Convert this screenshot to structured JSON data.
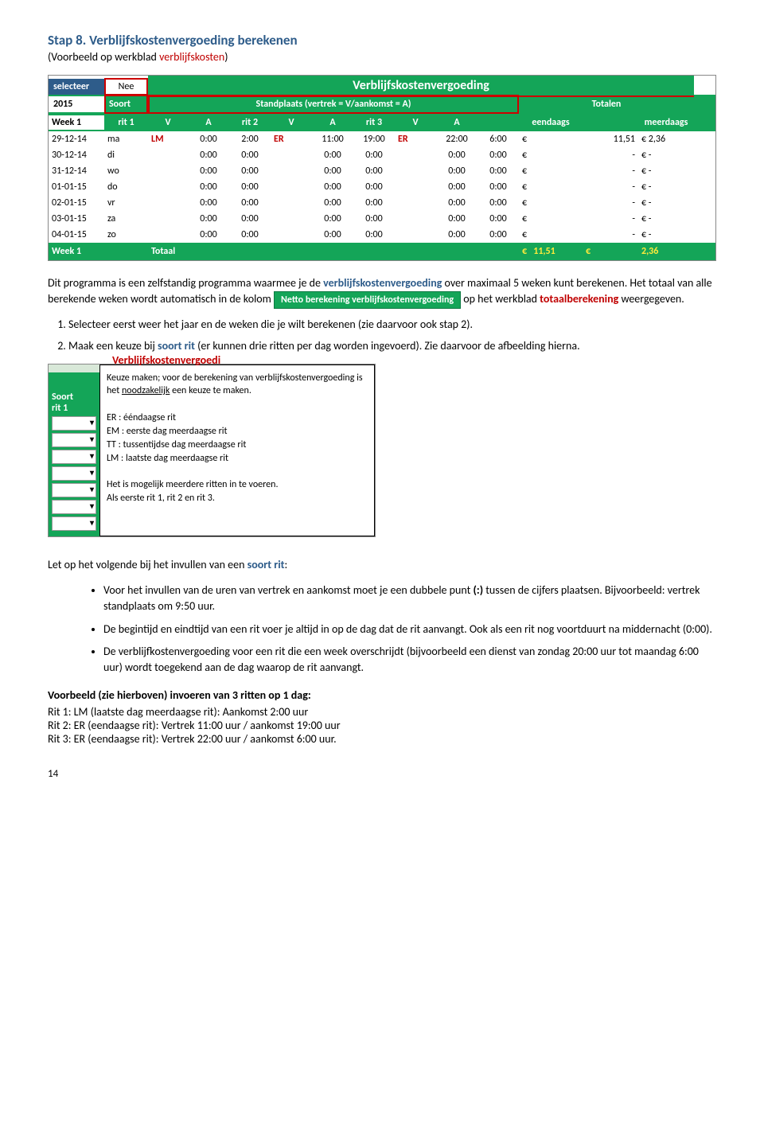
{
  "step": {
    "title": "Stap 8. Verblijfskostenvergoeding berekenen",
    "sub_pre": "(Voorbeeld op werkblad ",
    "sub_red": "verblijfskosten",
    "sub_post": ")"
  },
  "sheet1": {
    "selecteer": "selecteer",
    "nee": "Nee",
    "title": "Verblijfskostenvergoeding",
    "year": "2015",
    "week": "Week 1",
    "soort": "Soort",
    "rit1": "rit 1",
    "stand": "Standplaats (vertrek = V/aankomst = A)",
    "totalen": "Totalen",
    "h": {
      "v": "V",
      "a": "A",
      "rit2": "rit 2",
      "rit3": "rit 3",
      "eend": "eendaags",
      "meer": "meerdaags"
    },
    "rows": [
      {
        "d": "29-12-14",
        "dag": "ma",
        "r1": "LM",
        "v1": "0:00",
        "a1": "2:00",
        "r2": "ER",
        "v2": "11:00",
        "a2": "19:00",
        "r3": "ER",
        "v3": "22:00",
        "a3": "6:00",
        "e": "€",
        "ev": "11,51",
        "m": "€",
        "mv": "2,36"
      },
      {
        "d": "30-12-14",
        "dag": "di",
        "r1": "",
        "v1": "0:00",
        "a1": "0:00",
        "r2": "",
        "v2": "0:00",
        "a2": "0:00",
        "r3": "",
        "v3": "0:00",
        "a3": "0:00",
        "e": "€",
        "ev": "-",
        "m": "€",
        "mv": "-"
      },
      {
        "d": "31-12-14",
        "dag": "wo",
        "r1": "",
        "v1": "0:00",
        "a1": "0:00",
        "r2": "",
        "v2": "0:00",
        "a2": "0:00",
        "r3": "",
        "v3": "0:00",
        "a3": "0:00",
        "e": "€",
        "ev": "-",
        "m": "€",
        "mv": "-"
      },
      {
        "d": "01-01-15",
        "dag": "do",
        "r1": "",
        "v1": "0:00",
        "a1": "0:00",
        "r2": "",
        "v2": "0:00",
        "a2": "0:00",
        "r3": "",
        "v3": "0:00",
        "a3": "0:00",
        "e": "€",
        "ev": "-",
        "m": "€",
        "mv": "-"
      },
      {
        "d": "02-01-15",
        "dag": "vr",
        "r1": "",
        "v1": "0:00",
        "a1": "0:00",
        "r2": "",
        "v2": "0:00",
        "a2": "0:00",
        "r3": "",
        "v3": "0:00",
        "a3": "0:00",
        "e": "€",
        "ev": "-",
        "m": "€",
        "mv": "-"
      },
      {
        "d": "03-01-15",
        "dag": "za",
        "r1": "",
        "v1": "0:00",
        "a1": "0:00",
        "r2": "",
        "v2": "0:00",
        "a2": "0:00",
        "r3": "",
        "v3": "0:00",
        "a3": "0:00",
        "e": "€",
        "ev": "-",
        "m": "€",
        "mv": "-"
      },
      {
        "d": "04-01-15",
        "dag": "zo",
        "r1": "",
        "v1": "0:00",
        "a1": "0:00",
        "r2": "",
        "v2": "0:00",
        "a2": "0:00",
        "r3": "",
        "v3": "0:00",
        "a3": "0:00",
        "e": "€",
        "ev": "-",
        "m": "€",
        "mv": "-"
      }
    ],
    "foot": {
      "wk": "Week 1",
      "tot": "Totaal",
      "e": "€",
      "ev": "11,51",
      "m": "€",
      "mv": "2,36"
    }
  },
  "para1": {
    "a": "Dit programma is een zelfstandig programma waarmee je de ",
    "b": "verblijfskostenvergoeding",
    "c": " over maximaal 5 weken kunt berekenen. Het totaal van alle berekende weken wordt automatisch in de kolom ",
    "btn": "Netto berekening verblijfskostenvergoeding",
    "d": " op het werkblad ",
    "e": "totaalberekening",
    "f": " weergegeven."
  },
  "numlist": {
    "i1": "Selecteer eerst weer het jaar en de weken die je wilt berekenen (zie daarvoor ook stap 2).",
    "i2a": "Maak een keuze bij ",
    "i2b": "soort rit",
    "i2c": " (er kunnen drie ritten per dag worden ingevoerd). Zie daarvoor de afbeelding hierna."
  },
  "tooltip": {
    "redtitle": "Verblijfskostenvergoedi",
    "soort": "Soort",
    "rit1": "rit 1",
    "dd": "▾",
    "body1": "Keuze maken; voor de berekening van verblijfskostenvergoeding is het ",
    "body1u": "noodzakelijk",
    "body1b": " een keuze te maken.",
    "opts": [
      "ER   : ééndaagse rit",
      "EM  : eerste dag meerdaagse rit",
      "TT   : tussentijdse dag meerdaagse rit",
      "LM  : laatste dag meerdaagse rit"
    ],
    "body2": "Het is mogelijk meerdere ritten in te voeren.",
    "body3": "Als eerste rit 1, rit 2 en rit 3."
  },
  "para2": {
    "a": "Let op het volgende bij het invullen van een ",
    "b": "soort rit",
    "c": ":"
  },
  "bullets": {
    "b1a": "Voor het invullen van de uren van vertrek en aankomst moet je een dubbele punt ",
    "b1b": "(:)",
    "b1c": " tussen de cijfers plaatsen. Bijvoorbeeld: vertrek standplaats om 9:50 uur.",
    "b2": "De begintijd en eindtijd van een rit voer je altijd in op de dag dat de rit aanvangt. Ook als een rit nog voortduurt na middernacht (0:00).",
    "b3": "De verblijfkostenvergoeding voor een rit die een week overschrijdt (bijvoorbeeld een dienst van zondag 20:00 uur tot maandag 6:00 uur) wordt toegekend aan de dag waarop de rit aanvangt."
  },
  "sub2": "Voorbeeld (zie hierboven) invoeren van 3 ritten op 1 dag:",
  "ritten": {
    "r1": "Rit 1: LM (laatste dag meerdaagse rit): Aankomst 2:00 uur",
    "r2": "Rit 2: ER (eendaagse rit): Vertrek 11:00 uur / aankomst 19:00 uur",
    "r3": "Rit 3: ER (eendaagse rit): Vertrek 22:00 uur / aankomst 6:00 uur."
  },
  "footer": "14"
}
